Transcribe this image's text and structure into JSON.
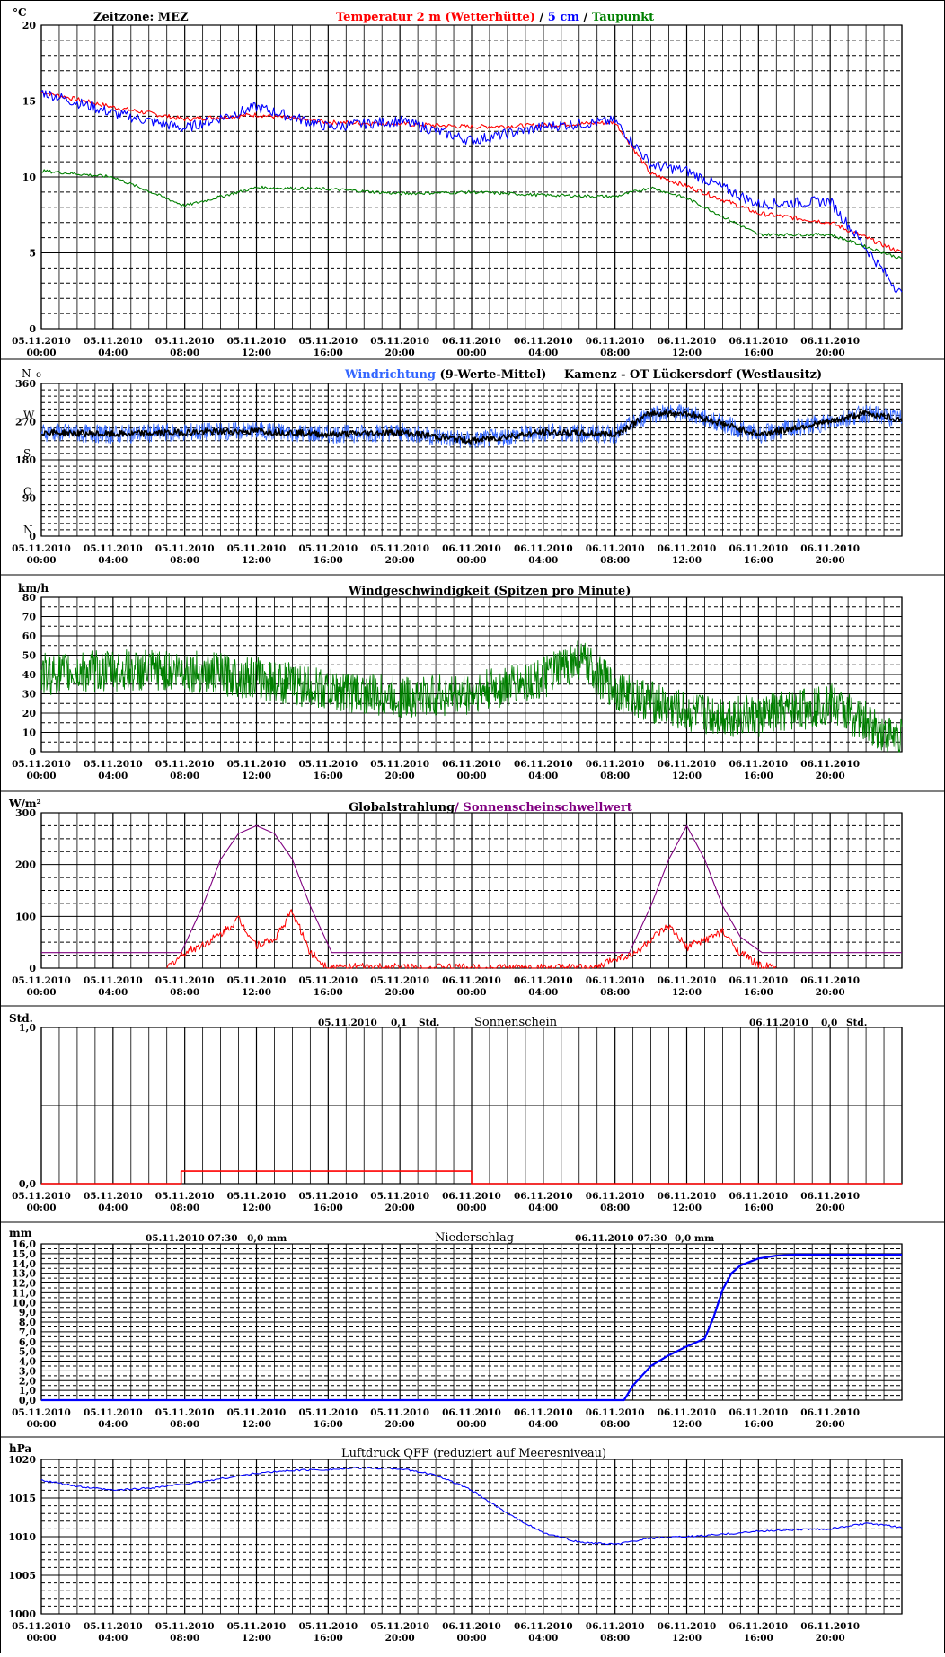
{
  "x_ticks": [
    {
      "date": "05.11.2010",
      "time": "00:00"
    },
    {
      "date": "05.11.2010",
      "time": "04:00"
    },
    {
      "date": "05.11.2010",
      "time": "08:00"
    },
    {
      "date": "05.11.2010",
      "time": "12:00"
    },
    {
      "date": "05.11.2010",
      "time": "16:00"
    },
    {
      "date": "05.11.2010",
      "time": "20:00"
    },
    {
      "date": "06.11.2010",
      "time": "00:00"
    },
    {
      "date": "06.11.2010",
      "time": "04:00"
    },
    {
      "date": "06.11.2010",
      "time": "08:00"
    },
    {
      "date": "06.11.2010",
      "time": "12:00"
    },
    {
      "date": "06.11.2010",
      "time": "16:00"
    },
    {
      "date": "06.11.2010",
      "time": "20:00"
    }
  ],
  "colors": {
    "red": "#ff0000",
    "blue": "#0000ff",
    "green": "#008000",
    "purple": "#800080",
    "lightblue": "#3366ff",
    "black": "#000000"
  },
  "chart_data": [
    {
      "type": "line",
      "unit": "°C",
      "zone_label": "Zeitzone: MEZ",
      "title_parts": [
        "Temperatur 2 m (Wetterhütte)",
        "  /  ",
        "5 cm",
        " / ",
        "Taupunkt"
      ],
      "ylim": [
        0,
        20
      ],
      "yticks": [
        "0",
        "5",
        "10",
        "15",
        "20"
      ],
      "x_hours": [
        0,
        4,
        8,
        12,
        16,
        20,
        24,
        28,
        32,
        34,
        36,
        40,
        44,
        48
      ],
      "series": [
        {
          "name": "Temperatur 2 m (Wetterhütte)",
          "color": "#ff0000",
          "values": [
            15.6,
            14.6,
            13.8,
            14.1,
            13.6,
            13.5,
            13.3,
            13.4,
            13.6,
            10.2,
            9.4,
            7.6,
            7.0,
            5.0
          ]
        },
        {
          "name": "5 cm",
          "color": "#0000ff",
          "values": [
            15.6,
            14.2,
            13.2,
            14.6,
            13.3,
            13.7,
            12.4,
            13.3,
            13.7,
            10.8,
            10.4,
            8.2,
            8.4,
            2.2
          ]
        },
        {
          "name": "Taupunkt",
          "color": "#008000",
          "values": [
            10.4,
            10.0,
            8.1,
            9.3,
            9.2,
            8.9,
            9.0,
            8.8,
            8.7,
            9.3,
            8.6,
            6.2,
            6.2,
            4.6
          ]
        }
      ]
    },
    {
      "type": "line",
      "unit": "N",
      "title_parts": [
        "Windrichtung",
        " (9-Werte-Mittel)"
      ],
      "station": "Kamenz - OT Lückersdorf (Westlausitz)",
      "ylim": [
        0,
        360
      ],
      "yticks": [
        "0",
        "90",
        "180",
        "270",
        "360"
      ],
      "ylabels": [
        "N",
        "O",
        "S",
        "W"
      ],
      "x_hours": [
        0,
        4,
        8,
        12,
        16,
        20,
        24,
        28,
        32,
        34,
        36,
        40,
        44,
        46,
        48
      ],
      "series": [
        {
          "name": "Windrichtung",
          "color": "#3366ff",
          "values": [
            245,
            240,
            245,
            248,
            240,
            245,
            225,
            245,
            240,
            290,
            290,
            240,
            270,
            290,
            275
          ]
        },
        {
          "name": "9-Werte-Mittel",
          "color": "#000000",
          "values": [
            245,
            240,
            245,
            248,
            240,
            245,
            225,
            245,
            240,
            290,
            290,
            240,
            270,
            290,
            275
          ]
        }
      ]
    },
    {
      "type": "line",
      "unit": "km/h",
      "title": "Windgeschwindigkeit (Spitzen pro Minute)",
      "ylim": [
        0,
        80
      ],
      "yticks": [
        "0",
        "10",
        "20",
        "30",
        "40",
        "50",
        "60",
        "70",
        "80"
      ],
      "x_hours": [
        0,
        4,
        8,
        12,
        16,
        20,
        24,
        28,
        30,
        32,
        36,
        40,
        44,
        46,
        48
      ],
      "series": [
        {
          "name": "Windgeschwindigkeit",
          "color": "#008000",
          "values": [
            40,
            42,
            42,
            38,
            32,
            28,
            30,
            38,
            48,
            32,
            20,
            18,
            25,
            15,
            6
          ]
        }
      ]
    },
    {
      "type": "line",
      "unit": "W/m²",
      "title_parts": [
        "Globalstrahlung",
        "/ Sonnenscheinschwellwert"
      ],
      "ylim": [
        0,
        300
      ],
      "yticks": [
        "0",
        "100",
        "200",
        "300"
      ],
      "series": [
        {
          "name": "Globalstrahlung",
          "color": "#ff0000",
          "x_hours": [
            7,
            8,
            9,
            10,
            11,
            12,
            13,
            14,
            15,
            16,
            31,
            32,
            33,
            34,
            35,
            36,
            37,
            38,
            39,
            40,
            41
          ],
          "values": [
            0,
            30,
            45,
            65,
            95,
            45,
            55,
            110,
            30,
            2,
            0,
            20,
            25,
            55,
            80,
            40,
            55,
            70,
            30,
            5,
            0
          ]
        },
        {
          "name": "Sonnenscheinschwellwert",
          "color": "#800080",
          "x_hours": [
            0,
            7.8,
            9,
            10,
            11,
            12,
            13,
            14,
            15,
            16.2,
            32.8,
            34,
            35,
            36,
            37,
            38,
            39,
            40.2,
            48
          ],
          "values": [
            30,
            30,
            120,
            210,
            260,
            275,
            260,
            210,
            120,
            30,
            30,
            120,
            210,
            275,
            210,
            120,
            60,
            30,
            30
          ]
        }
      ]
    },
    {
      "type": "line",
      "unit": "Std.",
      "title": "Sonnenschein",
      "day1_date": "05.11.2010",
      "day1_value": "0,1",
      "day1_unit": "Std.",
      "day2_date": "06.11.2010",
      "day2_value": "0,0",
      "day2_unit": "Std.",
      "ylim": [
        0,
        1
      ],
      "yticks": [
        "0,0",
        "1,0"
      ],
      "series": [
        {
          "name": "Sonnenschein",
          "color": "#ff0000",
          "x_hours": [
            0,
            7.8,
            7.8,
            24,
            24,
            48
          ],
          "values": [
            0,
            0,
            0.08,
            0.08,
            0,
            0
          ]
        }
      ]
    },
    {
      "type": "line",
      "unit": "mm",
      "title": "Niederschlag",
      "day1_stamp": "05.11.2010 07:30",
      "day1_value": "0,0",
      "day1_unit": "mm",
      "day2_stamp": "06.11.2010 07:30",
      "day2_value": "0,0",
      "day2_unit": "mm",
      "ylim": [
        0,
        16
      ],
      "yticks": [
        "0,0",
        "1,0",
        "2,0",
        "3,0",
        "4,0",
        "5,0",
        "6,0",
        "7,0",
        "8,0",
        "9,0",
        "10,0",
        "11,0",
        "12,0",
        "13,0",
        "14,0",
        "15,0",
        "16,0"
      ],
      "series": [
        {
          "name": "Niederschlag",
          "color": "#0000ff",
          "x_hours": [
            0,
            32.5,
            33,
            34,
            35,
            36,
            37,
            37.5,
            38,
            38.5,
            39,
            40,
            41,
            42,
            48
          ],
          "values": [
            0,
            0,
            1.5,
            3.5,
            4.6,
            5.5,
            6.3,
            8.5,
            11.3,
            13,
            13.8,
            14.5,
            14.8,
            14.9,
            14.9
          ]
        }
      ]
    },
    {
      "type": "line",
      "unit": "hPa",
      "title": "Luftdruck QFF (reduziert auf Meeresniveau)",
      "ylim": [
        1000,
        1020
      ],
      "yticks": [
        "1000",
        "1005",
        "1010",
        "1015",
        "1020"
      ],
      "x_hours": [
        0,
        2,
        4,
        6,
        8,
        10,
        12,
        14,
        16,
        18,
        20,
        22,
        24,
        26,
        28,
        30,
        32,
        34,
        36,
        38,
        40,
        42,
        44,
        46,
        48
      ],
      "series": [
        {
          "name": "Luftdruck QFF",
          "color": "#0000ff",
          "values": [
            1017.3,
            1016.5,
            1016.0,
            1016.3,
            1016.8,
            1017.5,
            1018.2,
            1018.6,
            1018.7,
            1018.9,
            1018.8,
            1018.0,
            1016.0,
            1013.0,
            1010.5,
            1009.3,
            1009.0,
            1009.8,
            1010.0,
            1010.3,
            1010.7,
            1010.9,
            1011.0,
            1011.7,
            1011.2
          ]
        }
      ]
    }
  ]
}
